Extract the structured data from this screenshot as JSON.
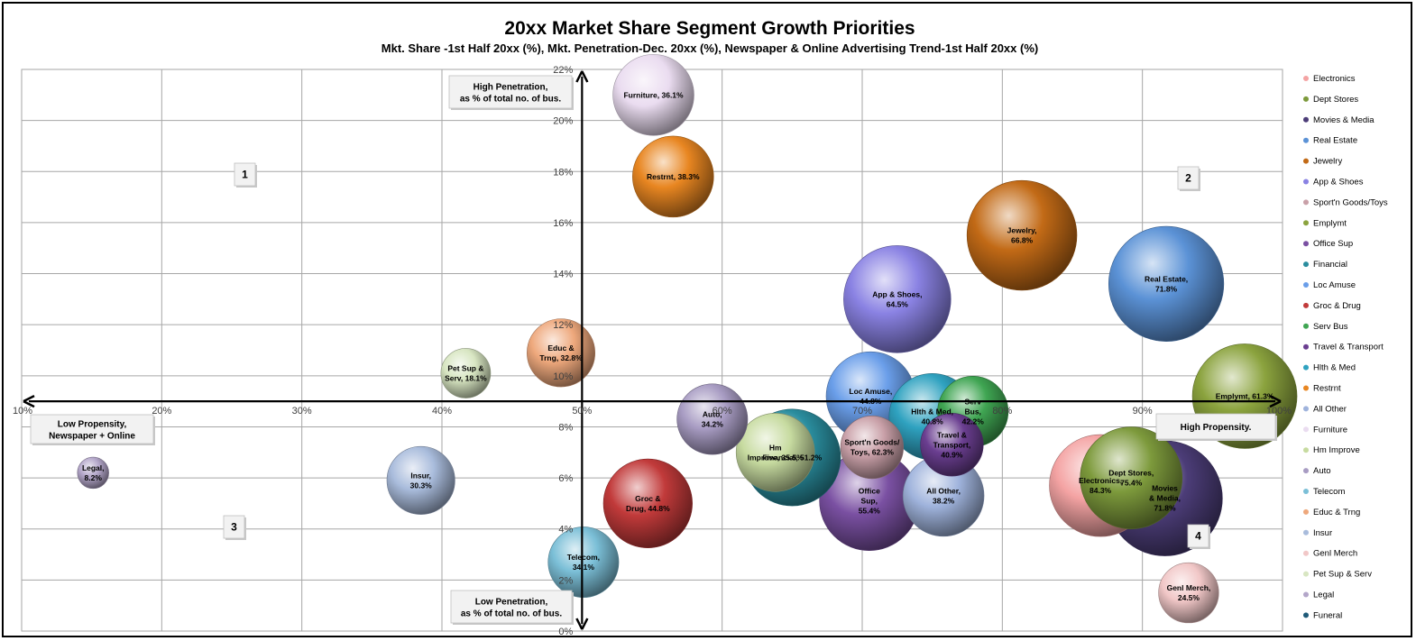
{
  "chart_data": {
    "type": "bubble",
    "title": "20xx Market Share Segment Growth Priorities",
    "subtitle": "Mkt. Share -1st Half 20xx (%), Mkt. Penetration-Dec. 20xx (%), Newspaper & Online Advertising Trend-1st Half 20xx (%)",
    "xlim": [
      10,
      100
    ],
    "ylim": [
      0,
      22
    ],
    "x_ticks": [
      "10%",
      "20%",
      "30%",
      "40%",
      "50%",
      "60%",
      "70%",
      "80%",
      "90%",
      "100%"
    ],
    "y_ticks": [
      "0%",
      "2%",
      "4%",
      "6%",
      "8%",
      "10%",
      "12%",
      "14%",
      "16%",
      "18%",
      "20%",
      "22%"
    ],
    "grid": true,
    "legend_position": "right",
    "annotations": {
      "high_penetration": [
        "High Penetration,",
        "as % of total no. of bus."
      ],
      "low_penetration": [
        "Low Penetration,",
        "as % of total no. of bus."
      ],
      "low_propensity": [
        "Low Propensity,",
        "Newspaper + Online"
      ],
      "high_propensity": "High Propensity.",
      "quadrants": [
        "1",
        "2",
        "3",
        "4"
      ]
    },
    "series": [
      {
        "name": "Electronics",
        "x": 87.0,
        "y": 5.7,
        "size": 39,
        "label": [
          "Electronics,",
          "84.3%"
        ],
        "color": "#f4a3a3"
      },
      {
        "name": "Dept Stores",
        "x": 89.2,
        "y": 6.0,
        "size": 39,
        "label": [
          "Dept Stores,",
          "75.4%"
        ],
        "color": "#7d9a3c"
      },
      {
        "name": "Movies & Media",
        "x": 91.6,
        "y": 5.2,
        "size": 44,
        "label": [
          "Movies",
          "& Media,",
          "71.8%"
        ],
        "color": "#4c3d78"
      },
      {
        "name": "Real Estate",
        "x": 91.7,
        "y": 13.6,
        "size": 44,
        "label": [
          "Real Estate,",
          "71.8%"
        ],
        "color": "#5b92d6"
      },
      {
        "name": "Jewelry",
        "x": 81.4,
        "y": 15.5,
        "size": 42,
        "label": [
          "Jewelry,",
          "66.8%"
        ],
        "color": "#c26a16"
      },
      {
        "name": "App & Shoes",
        "x": 72.5,
        "y": 13.0,
        "size": 41,
        "label": [
          "App & Shoes,",
          "64.5%"
        ],
        "color": "#8a82e3"
      },
      {
        "name": "Sport'n Goods/Toys",
        "x": 70.7,
        "y": 7.2,
        "size": 24,
        "label": [
          "Sport'n Goods/",
          "Toys, 62.3%"
        ],
        "color": "#c9a0a8"
      },
      {
        "name": "Emplymt",
        "x": 97.3,
        "y": 9.2,
        "size": 40,
        "label": [
          "Emplymt, 61.3%"
        ],
        "color": "#8ba33e"
      },
      {
        "name": "Office Sup",
        "x": 70.5,
        "y": 5.1,
        "size": 38,
        "label": [
          "Office",
          "Sup,",
          "55.4%"
        ],
        "color": "#7a50a2"
      },
      {
        "name": "Financial",
        "x": 65.0,
        "y": 6.8,
        "size": 37,
        "label": [
          "Financial, 51.2%"
        ],
        "color": "#2a8d9e"
      },
      {
        "name": "Loc Amuse",
        "x": 70.6,
        "y": 9.2,
        "size": 34,
        "label": [
          "Loc Amuse,",
          "44.8%"
        ],
        "color": "#6a9ee9"
      },
      {
        "name": "Groc & Drug",
        "x": 54.7,
        "y": 5.0,
        "size": 34,
        "label": [
          "Groc &",
          "Drug, 44.8%"
        ],
        "color": "#c13a3a"
      },
      {
        "name": "Serv Bus",
        "x": 77.9,
        "y": 8.6,
        "size": 27,
        "label": [
          "Serv",
          "Bus,",
          "42.2%"
        ],
        "color": "#3fa552"
      },
      {
        "name": "Travel & Transport",
        "x": 76.4,
        "y": 7.3,
        "size": 24,
        "label": [
          "Travel &",
          "Transport,",
          "40.9%"
        ],
        "color": "#6a3e90"
      },
      {
        "name": "Hlth & Med",
        "x": 75.0,
        "y": 8.4,
        "size": 33,
        "label": [
          "Hlth & Med,",
          "40.8%"
        ],
        "color": "#2fa2c0"
      },
      {
        "name": "Restrnt",
        "x": 56.5,
        "y": 17.8,
        "size": 31,
        "label": [
          "Restrnt, 38.3%"
        ],
        "color": "#e88621"
      },
      {
        "name": "All Other",
        "x": 75.8,
        "y": 5.3,
        "size": 31,
        "label": [
          "All Other,",
          "38.2%"
        ],
        "color": "#9fb3dc"
      },
      {
        "name": "Furniture",
        "x": 55.1,
        "y": 21.0,
        "size": 31,
        "label": [
          "Furniture, 36.1%"
        ],
        "color": "#eadcf0"
      },
      {
        "name": "Hm Improve",
        "x": 63.8,
        "y": 7.0,
        "size": 30,
        "label": [
          "Hm",
          "Improve, 35.5%"
        ],
        "color": "#c7dba0"
      },
      {
        "name": "Auto",
        "x": 59.3,
        "y": 8.3,
        "size": 27,
        "label": [
          "Auto,",
          "34.2%"
        ],
        "color": "#a89cc3"
      },
      {
        "name": "Telecom",
        "x": 50.1,
        "y": 2.7,
        "size": 27,
        "label": [
          "Telecom,",
          "34.1%"
        ],
        "color": "#7bbfd7"
      },
      {
        "name": "Educ & Trng",
        "x": 48.5,
        "y": 10.9,
        "size": 26,
        "label": [
          "Educ &",
          "Trng, 32.8%"
        ],
        "color": "#eea87c"
      },
      {
        "name": "Insur",
        "x": 38.5,
        "y": 5.9,
        "size": 26,
        "label": [
          "Insur,",
          "30.3%"
        ],
        "color": "#a9bcdc"
      },
      {
        "name": "Genl Merch",
        "x": 93.3,
        "y": 1.5,
        "size": 23,
        "label": [
          "Genl Merch,",
          "24.5%"
        ],
        "color": "#f1c7c7"
      },
      {
        "name": "Pet Sup & Serv",
        "x": 41.7,
        "y": 10.1,
        "size": 19,
        "label": [
          "Pet Sup &",
          "Serv, 18.1%"
        ],
        "color": "#d8e6c2"
      },
      {
        "name": "Legal",
        "x": 15.1,
        "y": 6.2,
        "size": 12,
        "label": [
          "Legal,",
          "8.2%"
        ],
        "color": "#b3a6c9"
      },
      {
        "name": "Funeral",
        "x": null,
        "y": null,
        "size": 0,
        "label": [],
        "color": "#1f5a78"
      }
    ]
  }
}
